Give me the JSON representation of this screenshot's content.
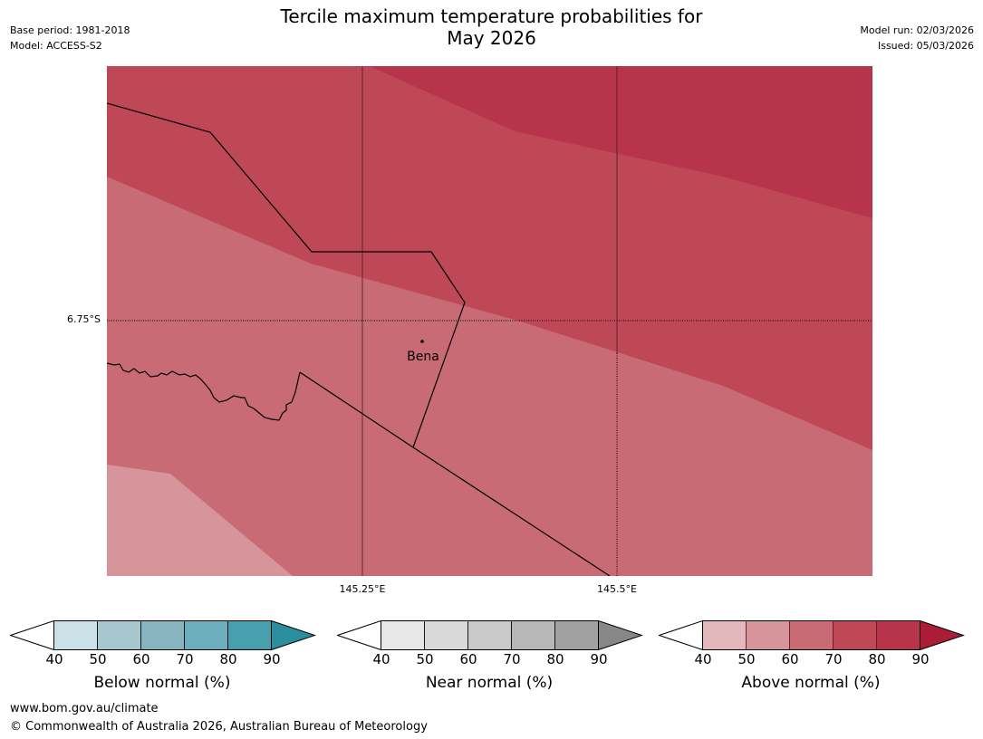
{
  "header": {
    "title_line1": "Tercile maximum temperature probabilities for",
    "title_line2": "May 2026",
    "base_period": "Base period: 1981-2018",
    "model": "Model: ACCESS-S2",
    "model_run": "Model run: 02/03/2026",
    "issued": "Issued: 05/03/2026"
  },
  "map": {
    "lat_label": "6.75°S",
    "lon_labels": [
      "145.25°E",
      "145.5°E"
    ],
    "place_name": "Bena",
    "fill_colors": {
      "band_50_60": "#d6949b",
      "band_60_70": "#c96b75",
      "band_70_80": "#bf4857",
      "band_80_90": "#b8344a"
    }
  },
  "colorbars": [
    {
      "title": "Below normal (%)",
      "ticks": [
        "40",
        "50",
        "60",
        "70",
        "80",
        "90"
      ],
      "colors": [
        "#c9e1e7",
        "#a6c7cd",
        "#88b4c0",
        "#6caebc",
        "#48a0ae"
      ],
      "extend_color": "#2a8e9e"
    },
    {
      "title": "Near normal (%)",
      "ticks": [
        "40",
        "50",
        "60",
        "70",
        "80",
        "90"
      ],
      "colors": [
        "#e7e7e7",
        "#d9d9d9",
        "#c9c9c9",
        "#b7b7b7",
        "#a1a1a1"
      ],
      "extend_color": "#878787"
    },
    {
      "title": "Above normal (%)",
      "ticks": [
        "40",
        "50",
        "60",
        "70",
        "80",
        "90"
      ],
      "colors": [
        "#e2b8bd",
        "#d6949b",
        "#c96b75",
        "#bf4857",
        "#b8344a"
      ],
      "extend_color": "#ab1d36"
    }
  ],
  "footer": {
    "url": "www.bom.gov.au/climate",
    "copyright": "© Commonwealth of Australia 2026, Australian Bureau of Meteorology"
  }
}
